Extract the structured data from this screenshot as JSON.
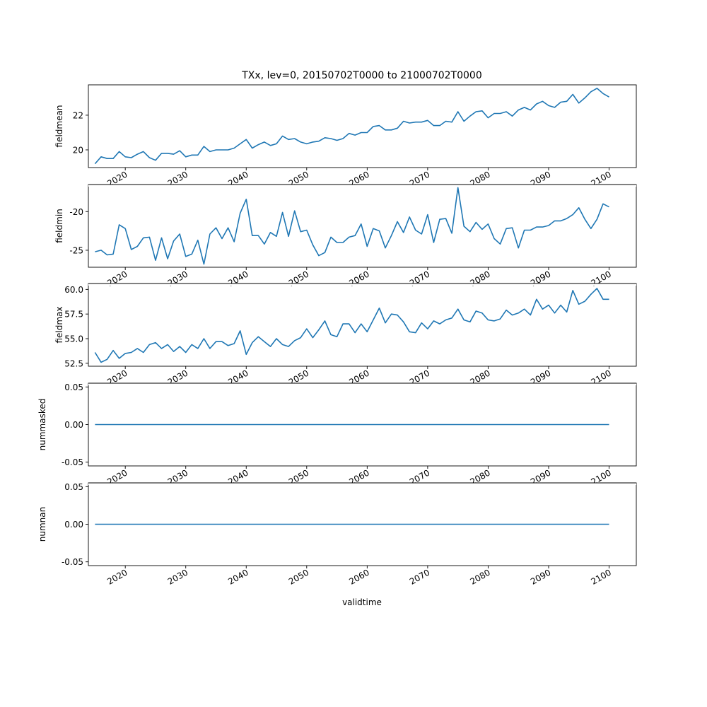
{
  "figure": {
    "title": "TXx, lev=0, 20150702T0000 to 21000702T0000",
    "xlabel": "validtime",
    "line_color": "#1f77b4"
  },
  "chart_data": [
    {
      "type": "line",
      "ylabel": "fieldmean",
      "xlim": [
        2013.9,
        2104.5
      ],
      "ylim": [
        18.98,
        23.75
      ],
      "xticks": [
        "2020",
        "2030",
        "2040",
        "2050",
        "2060",
        "2070",
        "2080",
        "2090",
        "2100"
      ],
      "yticks": [
        "20",
        "22"
      ],
      "x": [
        2015,
        2016,
        2017,
        2018,
        2019,
        2020,
        2021,
        2022,
        2023,
        2024,
        2025,
        2026,
        2027,
        2028,
        2029,
        2030,
        2031,
        2032,
        2033,
        2034,
        2035,
        2036,
        2037,
        2038,
        2039,
        2040,
        2041,
        2042,
        2043,
        2044,
        2045,
        2046,
        2047,
        2048,
        2049,
        2050,
        2051,
        2052,
        2053,
        2054,
        2055,
        2056,
        2057,
        2058,
        2059,
        2060,
        2061,
        2062,
        2063,
        2064,
        2065,
        2066,
        2067,
        2068,
        2069,
        2070,
        2071,
        2072,
        2073,
        2074,
        2075,
        2076,
        2077,
        2078,
        2079,
        2080,
        2081,
        2082,
        2083,
        2084,
        2085,
        2086,
        2087,
        2088,
        2089,
        2090,
        2091,
        2092,
        2093,
        2094,
        2095,
        2096,
        2097,
        2098,
        2099,
        2100
      ],
      "y": [
        19.2,
        19.6,
        19.5,
        19.5,
        19.9,
        19.6,
        19.55,
        19.75,
        19.9,
        19.55,
        19.4,
        19.8,
        19.8,
        19.75,
        19.95,
        19.6,
        19.7,
        19.7,
        20.2,
        19.9,
        20.0,
        20.0,
        20.0,
        20.1,
        20.35,
        20.6,
        20.1,
        20.3,
        20.45,
        20.25,
        20.35,
        20.8,
        20.6,
        20.65,
        20.45,
        20.35,
        20.45,
        20.5,
        20.7,
        20.65,
        20.55,
        20.65,
        20.95,
        20.85,
        21.0,
        21.0,
        21.35,
        21.4,
        21.15,
        21.15,
        21.25,
        21.65,
        21.55,
        21.6,
        21.6,
        21.7,
        21.4,
        21.4,
        21.65,
        21.6,
        22.2,
        21.65,
        21.95,
        22.2,
        22.25,
        21.85,
        22.1,
        22.1,
        22.2,
        21.95,
        22.3,
        22.45,
        22.3,
        22.65,
        22.8,
        22.55,
        22.45,
        22.75,
        22.8,
        23.2,
        22.7,
        23.0,
        23.35,
        23.55,
        23.25,
        23.05
      ]
    },
    {
      "type": "line",
      "ylabel": "fieldmin",
      "xlim": [
        2013.9,
        2104.5
      ],
      "ylim": [
        -27.2,
        -16.5
      ],
      "xticks": [
        "2020",
        "2030",
        "2040",
        "2050",
        "2060",
        "2070",
        "2080",
        "2090",
        "2100"
      ],
      "yticks": [
        "-20",
        "-25"
      ],
      "x": [
        2015,
        2016,
        2017,
        2018,
        2019,
        2020,
        2021,
        2022,
        2023,
        2024,
        2025,
        2026,
        2027,
        2028,
        2029,
        2030,
        2031,
        2032,
        2033,
        2034,
        2035,
        2036,
        2037,
        2038,
        2039,
        2040,
        2041,
        2042,
        2043,
        2044,
        2045,
        2046,
        2047,
        2048,
        2049,
        2050,
        2051,
        2052,
        2053,
        2054,
        2055,
        2056,
        2057,
        2058,
        2059,
        2060,
        2061,
        2062,
        2063,
        2064,
        2065,
        2066,
        2067,
        2068,
        2069,
        2070,
        2071,
        2072,
        2073,
        2074,
        2075,
        2076,
        2077,
        2078,
        2079,
        2080,
        2081,
        2082,
        2083,
        2084,
        2085,
        2086,
        2087,
        2088,
        2089,
        2090,
        2091,
        2092,
        2093,
        2094,
        2095,
        2096,
        2097,
        2098,
        2099,
        2100
      ],
      "y": [
        -25.2,
        -25.0,
        -25.6,
        -25.5,
        -21.7,
        -22.2,
        -24.9,
        -24.5,
        -23.4,
        -23.3,
        -26.3,
        -23.4,
        -26.1,
        -23.8,
        -22.9,
        -25.8,
        -25.5,
        -23.7,
        -26.8,
        -22.9,
        -22.1,
        -23.5,
        -22.1,
        -23.9,
        -20.2,
        -18.4,
        -23.1,
        -23.1,
        -24.2,
        -22.7,
        -23.2,
        -20.1,
        -23.2,
        -19.9,
        -22.6,
        -22.4,
        -24.3,
        -25.7,
        -25.3,
        -23.3,
        -24.0,
        -24.0,
        -23.3,
        -23.1,
        -21.6,
        -24.5,
        -22.2,
        -22.5,
        -24.7,
        -23.1,
        -21.3,
        -22.7,
        -20.7,
        -22.4,
        -22.9,
        -20.4,
        -24.0,
        -21.0,
        -20.9,
        -22.8,
        -16.9,
        -21.9,
        -22.6,
        -21.4,
        -22.3,
        -21.6,
        -23.5,
        -24.2,
        -22.2,
        -22.1,
        -24.7,
        -22.4,
        -22.4,
        -22.0,
        -22.0,
        -21.8,
        -21.2,
        -21.2,
        -20.9,
        -20.4,
        -19.5,
        -21.0,
        -22.2,
        -21.0,
        -19.0,
        -19.4
      ]
    },
    {
      "type": "line",
      "ylabel": "fieldmax",
      "xlim": [
        2013.9,
        2104.5
      ],
      "ylim": [
        52.2,
        60.6
      ],
      "xticks": [
        "2020",
        "2030",
        "2040",
        "2050",
        "2060",
        "2070",
        "2080",
        "2090",
        "2100"
      ],
      "yticks": [
        "52.5",
        "55.0",
        "57.5",
        "60.0"
      ],
      "x": [
        2015,
        2016,
        2017,
        2018,
        2019,
        2020,
        2021,
        2022,
        2023,
        2024,
        2025,
        2026,
        2027,
        2028,
        2029,
        2030,
        2031,
        2032,
        2033,
        2034,
        2035,
        2036,
        2037,
        2038,
        2039,
        2040,
        2041,
        2042,
        2043,
        2044,
        2045,
        2046,
        2047,
        2048,
        2049,
        2050,
        2051,
        2052,
        2053,
        2054,
        2055,
        2056,
        2057,
        2058,
        2059,
        2060,
        2061,
        2062,
        2063,
        2064,
        2065,
        2066,
        2067,
        2068,
        2069,
        2070,
        2071,
        2072,
        2073,
        2074,
        2075,
        2076,
        2077,
        2078,
        2079,
        2080,
        2081,
        2082,
        2083,
        2084,
        2085,
        2086,
        2087,
        2088,
        2089,
        2090,
        2091,
        2092,
        2093,
        2094,
        2095,
        2096,
        2097,
        2098,
        2099,
        2100
      ],
      "y": [
        53.6,
        52.6,
        52.9,
        53.8,
        53.0,
        53.5,
        53.6,
        54.0,
        53.6,
        54.4,
        54.6,
        54.0,
        54.4,
        53.7,
        54.2,
        53.6,
        54.4,
        54.0,
        55.0,
        54.0,
        54.7,
        54.7,
        54.3,
        54.5,
        55.8,
        53.4,
        54.6,
        55.2,
        54.7,
        54.2,
        55.0,
        54.4,
        54.2,
        54.8,
        55.1,
        56.0,
        55.1,
        55.9,
        56.8,
        55.4,
        55.2,
        56.5,
        56.5,
        55.6,
        56.5,
        55.7,
        56.9,
        58.1,
        56.6,
        57.5,
        57.4,
        56.7,
        55.7,
        55.6,
        56.6,
        56.0,
        56.8,
        56.5,
        56.9,
        57.1,
        58.0,
        56.9,
        56.7,
        57.8,
        57.6,
        56.9,
        56.8,
        57.0,
        57.9,
        57.4,
        57.6,
        58.0,
        57.4,
        59.0,
        58.0,
        58.4,
        57.6,
        58.4,
        57.7,
        59.9,
        58.5,
        58.8,
        59.5,
        60.1,
        59.0,
        59.0
      ]
    },
    {
      "type": "line",
      "ylabel": "nummasked",
      "xlim": [
        2013.9,
        2104.5
      ],
      "ylim": [
        -0.055,
        0.055
      ],
      "xticks": [
        "2020",
        "2030",
        "2040",
        "2050",
        "2060",
        "2070",
        "2080",
        "2090",
        "2100"
      ],
      "yticks": [
        "0.05",
        "0.00",
        "-0.05"
      ],
      "x": [
        2015,
        2100
      ],
      "y": [
        0.0,
        0.0
      ]
    },
    {
      "type": "line",
      "ylabel": "numnan",
      "xlim": [
        2013.9,
        2104.5
      ],
      "ylim": [
        -0.055,
        0.055
      ],
      "xticks": [
        "2020",
        "2030",
        "2040",
        "2050",
        "2060",
        "2070",
        "2080",
        "2090",
        "2100"
      ],
      "yticks": [
        "0.05",
        "0.00",
        "-0.05"
      ],
      "x": [
        2015,
        2100
      ],
      "y": [
        0.0,
        0.0
      ]
    }
  ]
}
